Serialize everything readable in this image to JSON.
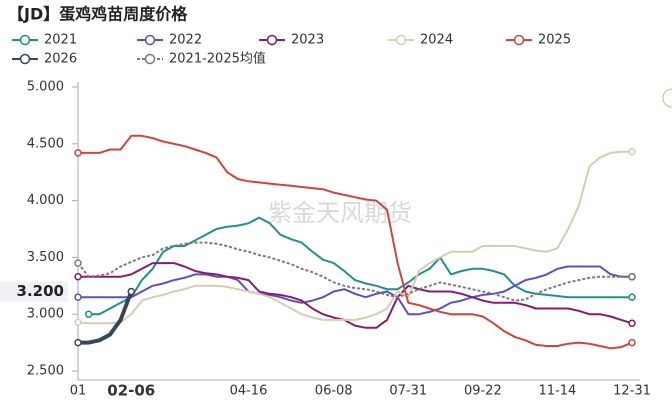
{
  "chart_data": {
    "type": "line",
    "title": "【JD】蛋鸡鸡苗周度价格",
    "watermark": "紫金天风期货",
    "pointer_label": {
      "value": 3.2,
      "label": "3.200"
    },
    "categories": [
      "01",
      null,
      null,
      null,
      null,
      "02-06",
      null,
      null,
      null,
      null,
      null,
      null,
      null,
      null,
      null,
      null,
      "04-16",
      null,
      null,
      null,
      null,
      null,
      null,
      null,
      "06-08",
      null,
      null,
      null,
      null,
      null,
      null,
      "07-31",
      null,
      null,
      null,
      null,
      null,
      null,
      "09-22",
      null,
      null,
      null,
      null,
      null,
      null,
      "11-14",
      null,
      null,
      null,
      null,
      null,
      null,
      "12-31"
    ],
    "ylim": [
      2.5,
      5.0
    ],
    "yticks": [
      {
        "value": 2.5,
        "label": "2.500"
      },
      {
        "value": 3.0,
        "label": "3.000"
      },
      {
        "value": 3.5,
        "label": "3.500"
      },
      {
        "value": 4.0,
        "label": "4.000"
      },
      {
        "value": 4.5,
        "label": "4.500"
      },
      {
        "value": 5.0,
        "label": "5.000"
      }
    ],
    "grid": false,
    "series": [
      {
        "name": "2021",
        "color": "#1f8f8f",
        "dashed": false,
        "values": [
          null,
          3.0,
          3.0,
          3.05,
          3.1,
          3.15,
          3.3,
          3.4,
          3.55,
          3.6,
          3.6,
          3.65,
          3.7,
          3.75,
          3.77,
          3.78,
          3.8,
          3.85,
          3.8,
          3.7,
          3.66,
          3.63,
          3.55,
          3.48,
          3.45,
          3.38,
          3.3,
          3.27,
          3.25,
          3.22,
          3.22,
          3.28,
          3.35,
          3.4,
          3.5,
          3.35,
          3.38,
          3.4,
          3.4,
          3.38,
          3.35,
          3.25,
          3.2,
          3.18,
          3.17,
          3.16,
          3.15,
          3.15,
          3.15,
          3.15,
          3.15,
          3.15,
          3.15
        ]
      },
      {
        "name": "2022",
        "color": "#5d4fc4",
        "dashed": false,
        "values": [
          3.15,
          3.15,
          3.15,
          3.15,
          3.15,
          3.15,
          3.2,
          3.25,
          3.27,
          3.3,
          3.32,
          3.35,
          3.35,
          3.33,
          3.33,
          3.3,
          3.2,
          3.18,
          3.17,
          3.15,
          3.12,
          3.1,
          3.12,
          3.15,
          3.2,
          3.22,
          3.18,
          3.15,
          3.18,
          3.2,
          3.15,
          3.0,
          3.0,
          3.02,
          3.05,
          3.1,
          3.12,
          3.15,
          3.17,
          3.18,
          3.2,
          3.25,
          3.3,
          3.32,
          3.35,
          3.4,
          3.42,
          3.42,
          3.42,
          3.42,
          3.35,
          3.33,
          3.33
        ]
      },
      {
        "name": "2023",
        "color": "#8a1a6e",
        "dashed": false,
        "values": [
          3.33,
          3.33,
          3.33,
          3.33,
          3.33,
          3.35,
          3.4,
          3.45,
          3.45,
          3.45,
          3.42,
          3.38,
          3.36,
          3.35,
          3.33,
          3.32,
          3.3,
          3.2,
          3.18,
          3.17,
          3.15,
          3.12,
          3.05,
          3.0,
          2.97,
          2.95,
          2.9,
          2.88,
          2.88,
          2.95,
          3.15,
          3.25,
          3.22,
          3.2,
          3.2,
          3.2,
          3.18,
          3.15,
          3.12,
          3.1,
          3.1,
          3.1,
          3.08,
          3.05,
          3.05,
          3.05,
          3.05,
          3.03,
          3.0,
          3.0,
          2.98,
          2.95,
          2.92
        ]
      },
      {
        "name": "2024",
        "color": "#d9cbb3",
        "dashed": false,
        "values": [
          2.93,
          2.92,
          2.92,
          2.92,
          2.93,
          3.0,
          3.12,
          3.15,
          3.17,
          3.2,
          3.22,
          3.25,
          3.25,
          3.25,
          3.24,
          3.22,
          3.2,
          3.18,
          3.15,
          3.1,
          3.05,
          3.0,
          2.97,
          2.95,
          2.95,
          2.95,
          2.95,
          2.97,
          3.0,
          3.05,
          3.2,
          3.15,
          3.38,
          3.45,
          3.5,
          3.55,
          3.55,
          3.55,
          3.6,
          3.6,
          3.6,
          3.6,
          3.58,
          3.56,
          3.55,
          3.58,
          3.75,
          3.95,
          4.3,
          4.38,
          4.42,
          4.43,
          4.43
        ]
      },
      {
        "name": "2025",
        "color": "#d2443a",
        "dashed": false,
        "values": [
          4.42,
          4.42,
          4.42,
          4.45,
          4.45,
          4.57,
          4.57,
          4.55,
          4.52,
          4.5,
          4.48,
          4.45,
          4.42,
          4.38,
          4.25,
          4.19,
          4.17,
          4.16,
          4.15,
          4.14,
          4.13,
          4.12,
          4.11,
          4.1,
          4.07,
          4.05,
          4.03,
          4.01,
          4.0,
          3.92,
          3.45,
          3.1,
          3.08,
          3.05,
          3.02,
          3.0,
          3.0,
          3.0,
          2.98,
          2.92,
          2.85,
          2.8,
          2.77,
          2.73,
          2.72,
          2.72,
          2.74,
          2.75,
          2.74,
          2.72,
          2.7,
          2.71,
          2.75
        ]
      },
      {
        "name": "2026",
        "color": "#37475a",
        "dashed": false,
        "thick": true,
        "values": [
          2.75,
          2.75,
          2.77,
          2.82,
          2.95,
          3.2,
          null,
          null,
          null,
          null,
          null,
          null,
          null,
          null,
          null,
          null,
          null,
          null,
          null,
          null,
          null,
          null,
          null,
          null,
          null,
          null,
          null,
          null,
          null,
          null,
          null,
          null,
          null,
          null,
          null,
          null,
          null,
          null,
          null,
          null,
          null,
          null,
          null,
          null,
          null,
          null,
          null,
          null,
          null,
          null,
          null,
          null,
          null
        ]
      },
      {
        "name": "2021-2025均值",
        "color": "#7a7a7a",
        "dashed": true,
        "values": [
          3.45,
          3.33,
          3.34,
          3.36,
          3.42,
          3.46,
          3.5,
          3.52,
          3.58,
          3.6,
          3.62,
          3.63,
          3.63,
          3.62,
          3.6,
          3.57,
          3.55,
          3.52,
          3.5,
          3.47,
          3.44,
          3.4,
          3.37,
          3.33,
          3.28,
          3.25,
          3.23,
          3.22,
          3.2,
          3.17,
          3.15,
          3.18,
          3.22,
          3.25,
          3.28,
          3.26,
          3.24,
          3.22,
          3.2,
          3.18,
          3.15,
          3.12,
          3.13,
          3.18,
          3.22,
          3.25,
          3.28,
          3.3,
          3.32,
          3.33,
          3.33,
          3.33,
          3.33
        ]
      }
    ]
  }
}
